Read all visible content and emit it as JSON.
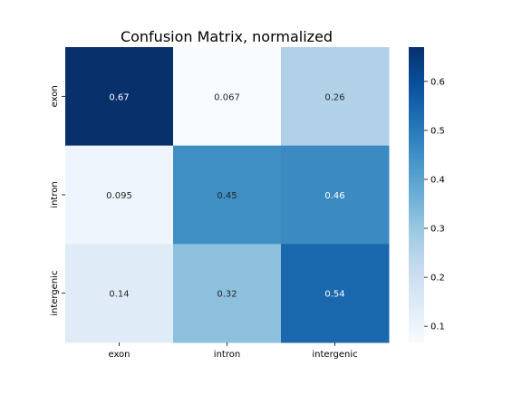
{
  "chart_data": {
    "type": "heatmap",
    "title": "Confusion Matrix, normalized",
    "xlabel": "",
    "ylabel": "",
    "x_categories": [
      "exon",
      "intron",
      "intergenic"
    ],
    "y_categories": [
      "exon",
      "intron",
      "intergenic"
    ],
    "values": [
      [
        0.67,
        0.067,
        0.26
      ],
      [
        0.095,
        0.45,
        0.46
      ],
      [
        0.14,
        0.32,
        0.54
      ]
    ],
    "cell_labels": [
      [
        "0.67",
        "0.067",
        "0.26"
      ],
      [
        "0.095",
        "0.45",
        "0.46"
      ],
      [
        "0.14",
        "0.32",
        "0.54"
      ]
    ],
    "colormap": "Blues",
    "color_range": [
      0.067,
      0.67
    ],
    "colorbar": {
      "ticks": [
        0.1,
        0.2,
        0.3,
        0.4,
        0.5,
        0.6
      ],
      "tick_labels": [
        "0.1",
        "0.2",
        "0.3",
        "0.4",
        "0.5",
        "0.6"
      ]
    },
    "grid": false
  }
}
